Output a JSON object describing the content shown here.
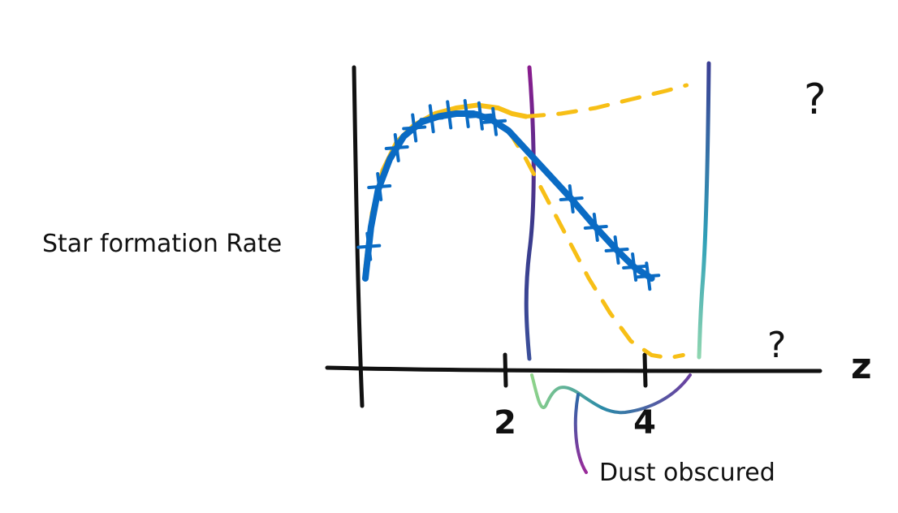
{
  "chart_data": {
    "type": "line",
    "title": "",
    "xlabel": "z",
    "ylabel": "Star formation Rate",
    "xlim": [
      -0.2,
      4.8
    ],
    "ylim": [
      0,
      1
    ],
    "x_ticks": [
      {
        "value": 2,
        "label": "2"
      },
      {
        "value": 4,
        "label": "4"
      }
    ],
    "grid": false,
    "legend": "none",
    "series": [
      {
        "name": "",
        "style": "solid with crosses",
        "color": "#0a6bc4",
        "x": [
          0.0,
          0.08,
          0.18,
          0.35,
          0.55,
          0.8,
          1.05,
          1.3,
          1.55,
          1.8,
          2.05,
          2.35,
          2.65,
          2.95,
          3.3,
          3.6,
          3.85,
          4.1
        ],
        "y": [
          0.32,
          0.5,
          0.63,
          0.74,
          0.82,
          0.87,
          0.89,
          0.9,
          0.9,
          0.88,
          0.84,
          0.76,
          0.68,
          0.6,
          0.5,
          0.42,
          0.36,
          0.32
        ],
        "markers_x": [
          0.05,
          0.2,
          0.45,
          0.7,
          0.95,
          1.2,
          1.45,
          1.65,
          1.85,
          2.95,
          3.3,
          3.6,
          3.85,
          4.05
        ]
      },
      {
        "name": "",
        "style": "solid",
        "color": "#f7bf16",
        "x": [
          0.0,
          0.1,
          0.25,
          0.45,
          0.7,
          1.0,
          1.3,
          1.6,
          1.9,
          2.1,
          2.3
        ],
        "y": [
          0.35,
          0.55,
          0.7,
          0.8,
          0.86,
          0.9,
          0.92,
          0.93,
          0.92,
          0.9,
          0.89
        ]
      },
      {
        "name": "",
        "style": "dashed",
        "color": "#f7bf16",
        "x": [
          2.3,
          2.8,
          3.3,
          3.8,
          4.3,
          4.6
        ],
        "y": [
          0.89,
          0.9,
          0.92,
          0.95,
          0.98,
          1.0
        ],
        "annotation": "?"
      },
      {
        "name": "",
        "style": "dashed",
        "color": "#f7bf16",
        "x": [
          2.05,
          2.3,
          2.6,
          2.9,
          3.2,
          3.5,
          3.8,
          4.1,
          4.35,
          4.55
        ],
        "y": [
          0.84,
          0.74,
          0.6,
          0.46,
          0.32,
          0.2,
          0.1,
          0.05,
          0.04,
          0.05
        ],
        "annotation": "?"
      }
    ],
    "annotations": [
      {
        "text": "Dust obscured",
        "region": [
          2.2,
          3.9
        ]
      }
    ]
  }
}
